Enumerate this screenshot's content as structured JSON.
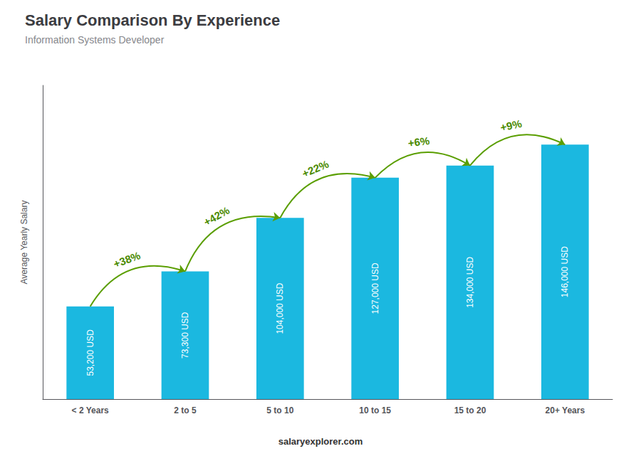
{
  "chart_data": {
    "type": "bar",
    "title": "Salary Comparison By Experience",
    "subtitle": "Information Systems Developer",
    "categories": [
      "< 2 Years",
      "2 to 5",
      "5 to 10",
      "10 to 15",
      "15 to 20",
      "20+ Years"
    ],
    "values": [
      53200,
      73300,
      104000,
      127000,
      134000,
      146000
    ],
    "value_labels": [
      "53,200 USD",
      "73,300 USD",
      "104,000 USD",
      "127,000 USD",
      "134,000 USD",
      "146,000 USD"
    ],
    "data_labels": true,
    "color": "#1BB8E0",
    "ylabel": "Average Yearly Salary",
    "ylim": [
      0,
      180000
    ],
    "annotations": [
      "+38%",
      "+42%",
      "+22%",
      "+6%",
      "+9%"
    ],
    "footer": "salaryexplorer.com",
    "grid": false,
    "tick_labels": "x"
  }
}
